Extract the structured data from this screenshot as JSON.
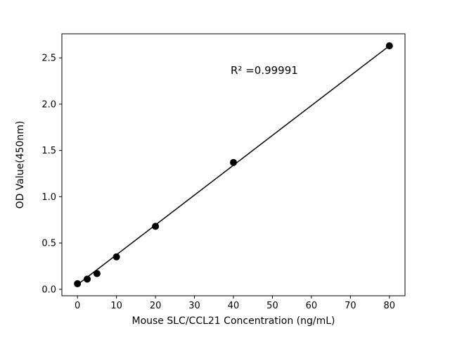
{
  "figure": {
    "background": "#ffffff"
  },
  "chart_data": {
    "type": "scatter",
    "title": "",
    "xlabel": "Mouse SLC/CCL21 Concentration (ng/mL)",
    "ylabel": "OD Value(450nm)",
    "annotation": "R² =0.99991",
    "x": [
      0,
      2.5,
      5,
      10,
      20,
      40,
      80
    ],
    "y": [
      0.06,
      0.11,
      0.17,
      0.35,
      0.68,
      1.37,
      2.63
    ],
    "fit_line": {
      "x1": 0,
      "y1": 0.05,
      "x2": 80,
      "y2": 2.63
    },
    "xticks": [
      0,
      10,
      20,
      30,
      40,
      50,
      60,
      70,
      80
    ],
    "yticks": [
      0.0,
      0.5,
      1.0,
      1.5,
      2.0,
      2.5
    ],
    "xlim": [
      -4,
      84
    ],
    "ylim": [
      -0.07,
      2.76
    ],
    "marker_color": "#000000",
    "line_color": "#000000",
    "grid": false,
    "legend_position": "none"
  }
}
